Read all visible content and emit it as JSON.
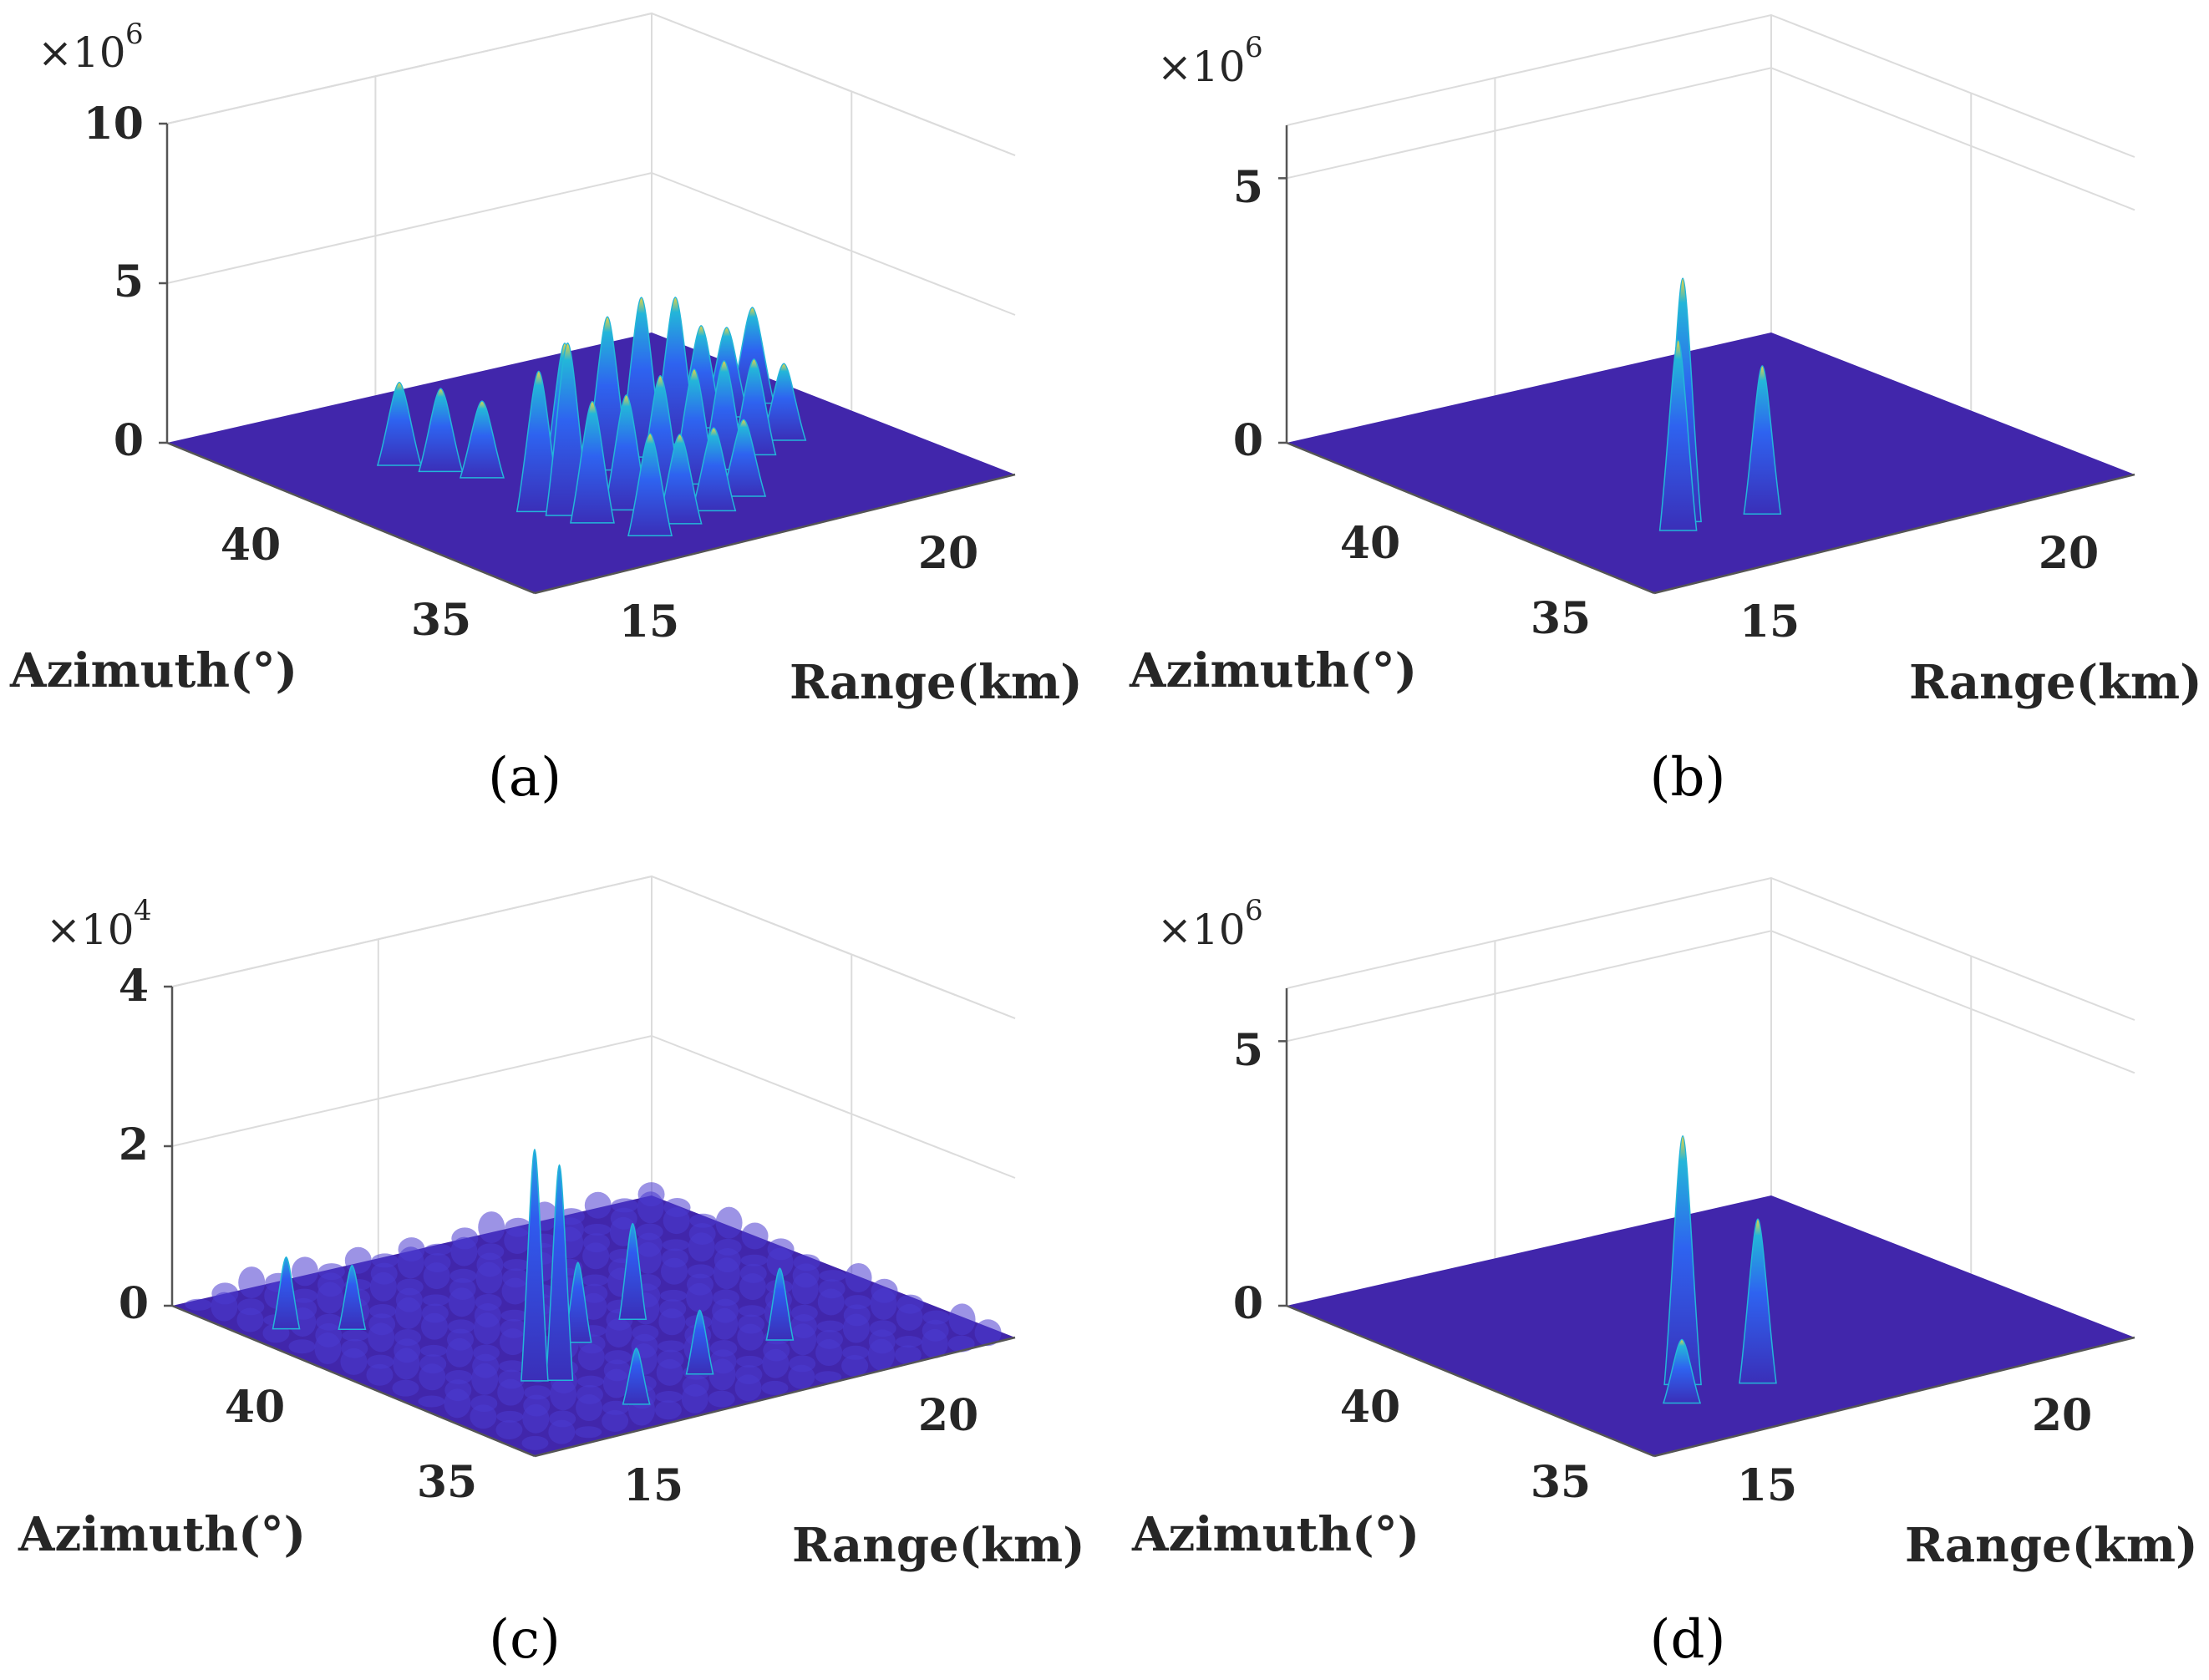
{
  "colors": {
    "floor": "#4126AB",
    "peak": "#2E63F0",
    "crest": "#23B6D9",
    "tip": "#F0D23C"
  },
  "chart_data": [
    {
      "type": "surface3d",
      "panel": "(a)",
      "xlabel": "Azimuth(°)",
      "ylabel": "Range(km)",
      "zexp_base": "×10",
      "zexp": "6",
      "zticks": [
        "0",
        "5",
        "10"
      ],
      "zlim": [
        0,
        10
      ],
      "xticks": [
        "40",
        "35"
      ],
      "yticks": [
        "15",
        "20"
      ],
      "peaks": [
        {
          "az": 36.2,
          "range": 14.9,
          "h": 5.4
        },
        {
          "az": 36.6,
          "range": 14.6,
          "h": 4.4
        },
        {
          "az": 37.2,
          "range": 15.8,
          "h": 4.6
        },
        {
          "az": 37.6,
          "range": 17.2,
          "h": 4.8
        },
        {
          "az": 37.8,
          "range": 18.2,
          "h": 5.0
        },
        {
          "az": 38.0,
          "range": 19.2,
          "h": 4.6
        },
        {
          "az": 38.4,
          "range": 20.2,
          "h": 3.2
        },
        {
          "az": 38.6,
          "range": 21.0,
          "h": 2.8
        },
        {
          "az": 38.9,
          "range": 21.9,
          "h": 3.0
        },
        {
          "az": 35.7,
          "range": 15.0,
          "h": 3.8
        },
        {
          "az": 35.9,
          "range": 16.0,
          "h": 3.6
        },
        {
          "az": 36.1,
          "range": 17.0,
          "h": 3.8
        },
        {
          "az": 36.3,
          "range": 18.0,
          "h": 3.6
        },
        {
          "az": 36.6,
          "range": 19.0,
          "h": 3.4
        },
        {
          "az": 36.9,
          "range": 20.0,
          "h": 3.0
        },
        {
          "az": 37.2,
          "range": 21.0,
          "h": 2.4
        },
        {
          "az": 39.6,
          "range": 14.2,
          "h": 2.6
        },
        {
          "az": 39.0,
          "range": 14.6,
          "h": 2.6
        },
        {
          "az": 38.4,
          "range": 15.0,
          "h": 2.4
        },
        {
          "az": 34.7,
          "range": 15.4,
          "h": 3.2
        },
        {
          "az": 34.9,
          "range": 16.3,
          "h": 2.8
        },
        {
          "az": 35.1,
          "range": 17.3,
          "h": 2.6
        },
        {
          "az": 35.4,
          "range": 18.3,
          "h": 2.4
        }
      ]
    },
    {
      "type": "surface3d",
      "panel": "(b)",
      "xlabel": "Azimuth(°)",
      "ylabel": "Range(km)",
      "zexp_base": "×10",
      "zexp": "6",
      "zticks": [
        "0",
        "5"
      ],
      "zlim": [
        0,
        6
      ],
      "xticks": [
        "40",
        "35"
      ],
      "yticks": [
        "15",
        "20"
      ],
      "peaks": [
        {
          "az": 36.0,
          "range": 14.6,
          "h": 4.6
        },
        {
          "az": 35.7,
          "range": 14.2,
          "h": 3.6
        },
        {
          "az": 35.6,
          "range": 16.1,
          "h": 2.8
        }
      ]
    },
    {
      "type": "surface3d",
      "panel": "(c)",
      "xlabel": "Azimuth(°)",
      "ylabel": "Range(km)",
      "zexp_base": "×10",
      "zexp": "4",
      "zticks": [
        "0",
        "2",
        "4"
      ],
      "zlim": [
        0,
        4
      ],
      "xticks": [
        "40",
        "35"
      ],
      "yticks": [
        "15",
        "20"
      ],
      "peaks": [
        {
          "az": 36.4,
          "range": 14.3,
          "h": 2.9
        },
        {
          "az": 36.2,
          "range": 14.7,
          "h": 2.7
        },
        {
          "az": 37.5,
          "range": 16.4,
          "h": 1.0
        },
        {
          "az": 37.9,
          "range": 18.1,
          "h": 1.2
        },
        {
          "az": 40.6,
          "range": 12.4,
          "h": 0.9
        },
        {
          "az": 40.0,
          "range": 13.4,
          "h": 0.8
        },
        {
          "az": 35.8,
          "range": 19.6,
          "h": 0.9
        },
        {
          "az": 35.2,
          "range": 17.1,
          "h": 0.8
        },
        {
          "az": 34.6,
          "range": 15.0,
          "h": 0.7
        }
      ]
    },
    {
      "type": "surface3d",
      "panel": "(d)",
      "xlabel": "Azimuth(°)",
      "ylabel": "Range(km)",
      "zexp_base": "×10",
      "zexp": "6",
      "zticks": [
        "0",
        "5"
      ],
      "zlim": [
        0,
        6
      ],
      "xticks": [
        "40",
        "35"
      ],
      "yticks": [
        "15",
        "20"
      ],
      "peaks": [
        {
          "az": 36.0,
          "range": 14.6,
          "h": 4.7
        },
        {
          "az": 35.4,
          "range": 15.8,
          "h": 3.1
        },
        {
          "az": 35.3,
          "range": 13.9,
          "h": 1.2
        }
      ]
    }
  ]
}
